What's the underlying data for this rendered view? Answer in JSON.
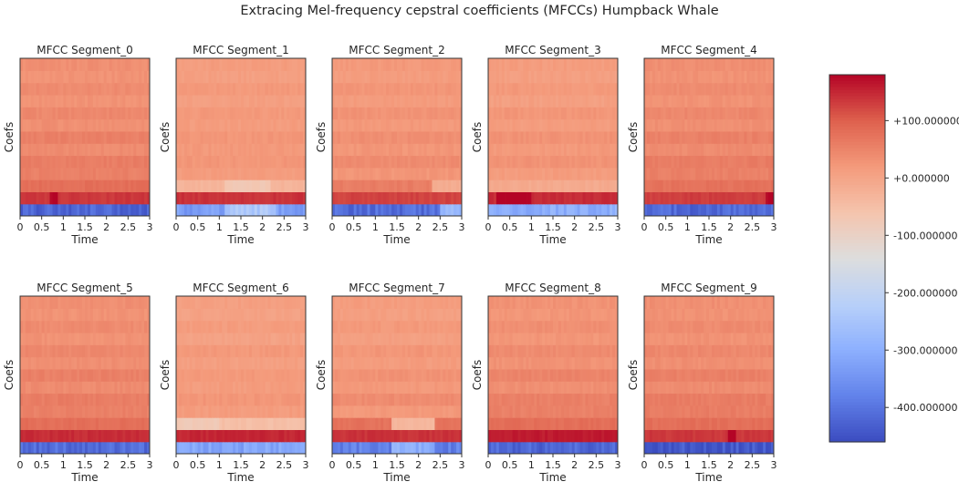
{
  "figure": {
    "suptitle": "Extracing Mel-frequency cepstral coefficients (MFCCs) Humpback Whale"
  },
  "chart_data": {
    "type": "heatmap",
    "colormap": "coolwarm",
    "n_coefficients": 13,
    "x_range": [
      0,
      3
    ],
    "x_ticks": [
      "0",
      "0.5",
      "1",
      "1.5",
      "2",
      "2.5",
      "3"
    ],
    "xlabel": "Time",
    "ylabel": "Coefs",
    "colorbar": {
      "range": [
        -460,
        180
      ],
      "ticks": [
        100,
        0,
        -100,
        -200,
        -300,
        -400
      ],
      "tick_labels": [
        "+100.000000",
        "+0.000000",
        "-100.000000",
        "-200.000000",
        "-300.000000",
        "-400.000000"
      ]
    },
    "segments": [
      {
        "title": "MFCC Segment_0",
        "coef_means": [
          -420,
          135,
          80,
          55,
          60,
          40,
          55,
          35,
          45,
          30,
          40,
          30,
          35
        ],
        "events": [
          {
            "row": 1,
            "x": [
              0.7,
              0.9
            ],
            "delta": 45
          }
        ]
      },
      {
        "title": "MFCC Segment_1",
        "coef_means": [
          -330,
          140,
          -30,
          15,
          25,
          20,
          25,
          15,
          20,
          10,
          20,
          10,
          15
        ],
        "events": [
          {
            "row": 0,
            "x": [
              1.1,
              2.3
            ],
            "delta": 90
          },
          {
            "row": 2,
            "x": [
              1.1,
              2.2
            ],
            "delta": -40
          }
        ]
      },
      {
        "title": "MFCC Segment_2",
        "coef_means": [
          -410,
          125,
          60,
          25,
          40,
          25,
          35,
          20,
          30,
          15,
          25,
          15,
          20
        ],
        "events": [
          {
            "row": 2,
            "x": [
              2.3,
              3.0
            ],
            "delta": -75
          },
          {
            "row": 0,
            "x": [
              2.5,
              3.0
            ],
            "delta": 120
          }
        ]
      },
      {
        "title": "MFCC Segment_3",
        "coef_means": [
          -300,
          145,
          -10,
          15,
          30,
          20,
          30,
          15,
          25,
          10,
          20,
          10,
          15
        ],
        "events": [
          {
            "row": 1,
            "x": [
              0.2,
              1.0
            ],
            "delta": 40
          }
        ]
      },
      {
        "title": "MFCC Segment_4",
        "coef_means": [
          -420,
          130,
          75,
          55,
          60,
          40,
          55,
          35,
          45,
          30,
          40,
          30,
          35
        ],
        "events": [
          {
            "row": 1,
            "x": [
              2.8,
              3.0
            ],
            "delta": 50
          }
        ]
      },
      {
        "title": "MFCC Segment_5",
        "coef_means": [
          -410,
          145,
          80,
          55,
          60,
          40,
          55,
          35,
          45,
          30,
          40,
          30,
          35
        ],
        "events": []
      },
      {
        "title": "MFCC Segment_6",
        "coef_means": [
          -320,
          150,
          -50,
          15,
          25,
          15,
          20,
          10,
          20,
          5,
          15,
          5,
          10
        ],
        "events": [
          {
            "row": 2,
            "x": [
              0.0,
              1.0
            ],
            "delta": -25
          }
        ]
      },
      {
        "title": "MFCC Segment_7",
        "coef_means": [
          -380,
          140,
          75,
          20,
          40,
          20,
          30,
          15,
          25,
          10,
          20,
          10,
          15
        ],
        "events": [
          {
            "row": 2,
            "x": [
              1.4,
              2.4
            ],
            "delta": -110
          },
          {
            "row": 0,
            "x": [
              1.4,
              2.4
            ],
            "delta": 80
          }
        ]
      },
      {
        "title": "MFCC Segment_8",
        "coef_means": [
          -420,
          160,
          80,
          55,
          55,
          35,
          50,
          30,
          40,
          25,
          35,
          25,
          30
        ],
        "events": []
      },
      {
        "title": "MFCC Segment_9",
        "coef_means": [
          -440,
          135,
          80,
          60,
          60,
          40,
          55,
          35,
          45,
          30,
          40,
          30,
          35
        ],
        "events": [
          {
            "row": 1,
            "x": [
              1.95,
              2.15
            ],
            "delta": 50
          }
        ]
      }
    ]
  }
}
